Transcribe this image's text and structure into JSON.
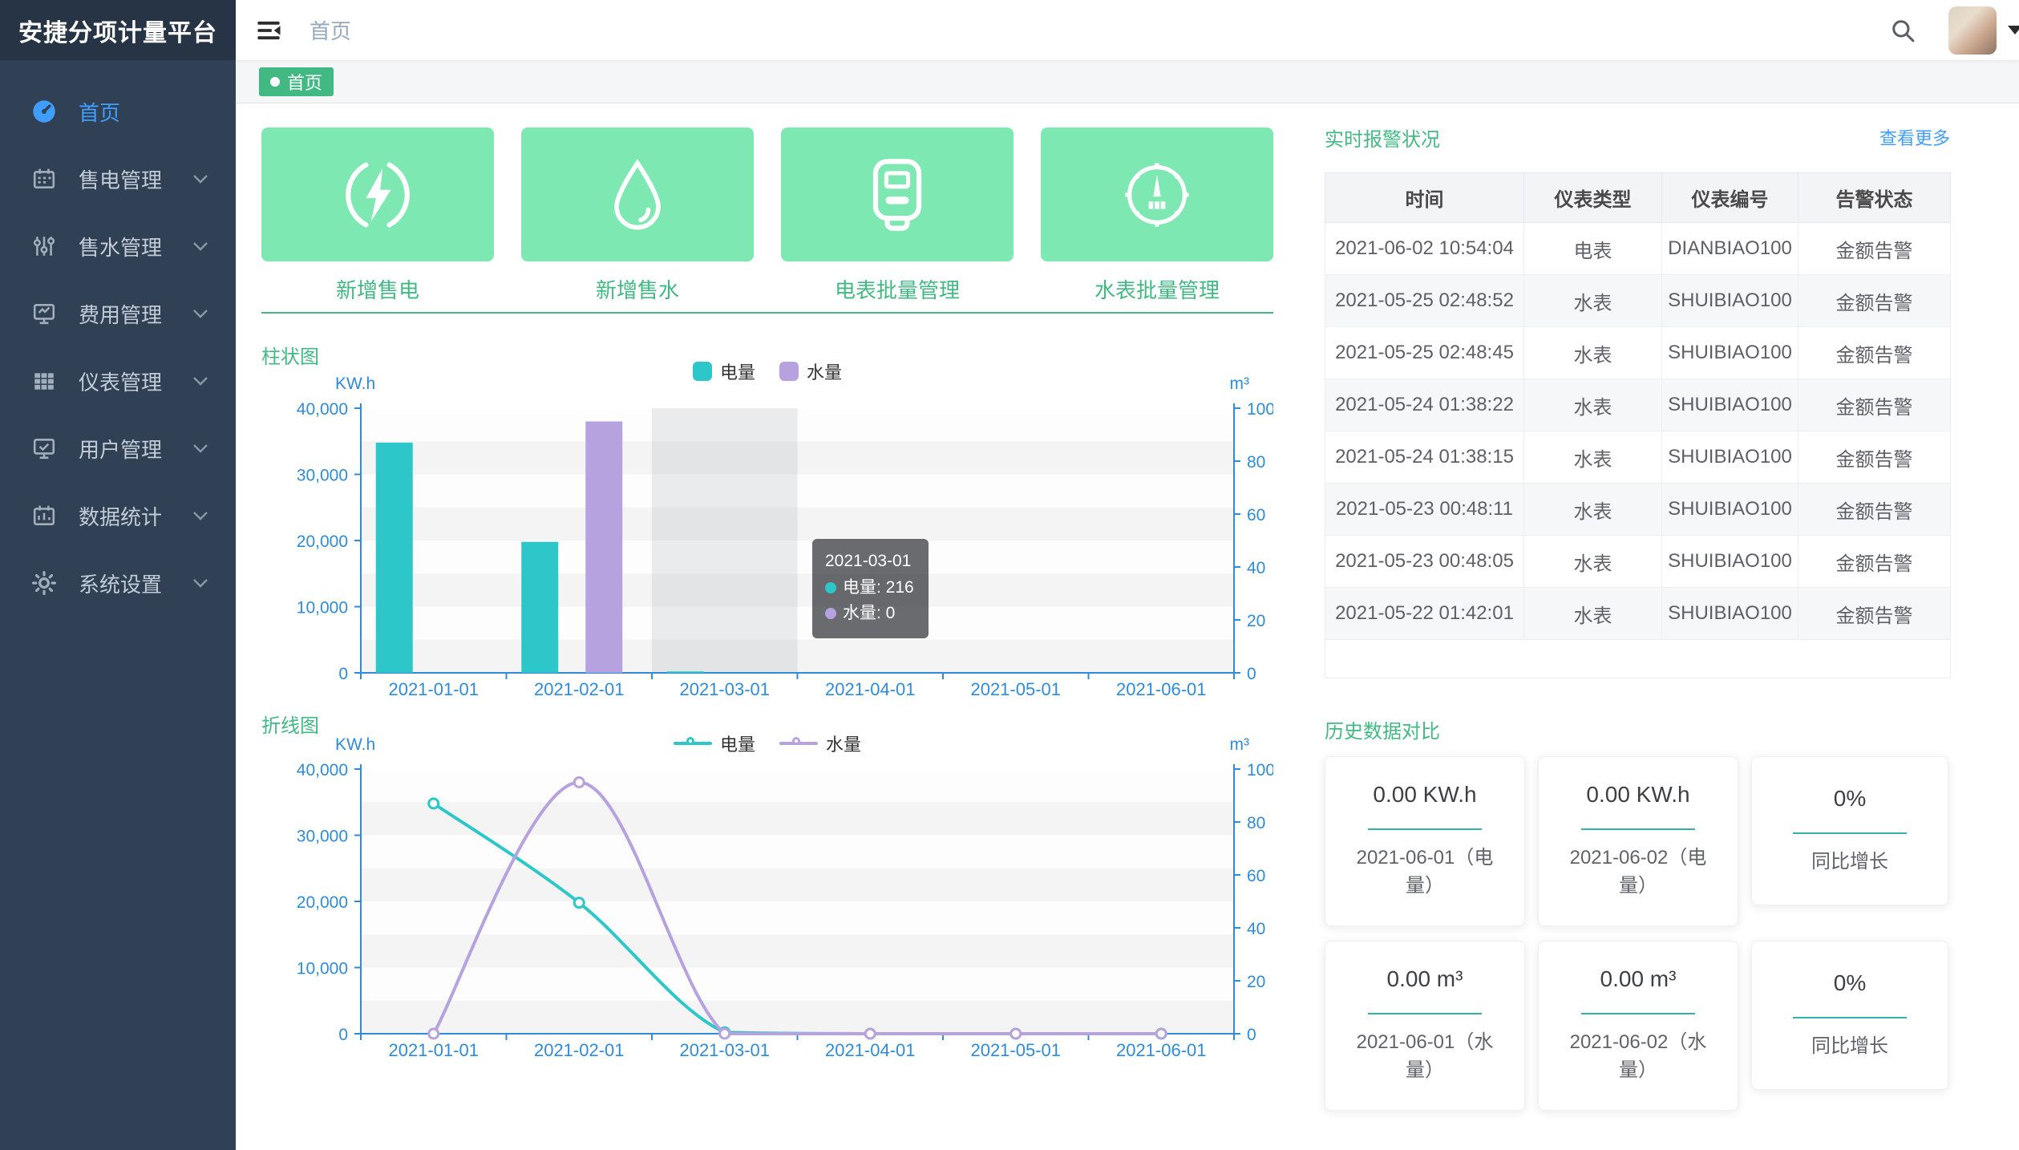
{
  "app": {
    "title": "安捷分项计量平台"
  },
  "header": {
    "breadcrumb": "首页"
  },
  "tagbar": {
    "active_tag": "首页"
  },
  "sidebar": {
    "items": [
      {
        "label": "首页",
        "icon": "dashboard-icon",
        "active": true,
        "has_children": false
      },
      {
        "label": "售电管理",
        "icon": "calendar-icon",
        "active": false,
        "has_children": true
      },
      {
        "label": "售水管理",
        "icon": "sliders-icon",
        "active": false,
        "has_children": true
      },
      {
        "label": "费用管理",
        "icon": "monitor-chart-icon",
        "active": false,
        "has_children": true
      },
      {
        "label": "仪表管理",
        "icon": "grid-icon",
        "active": false,
        "has_children": true
      },
      {
        "label": "用户管理",
        "icon": "monitor-check-icon",
        "active": false,
        "has_children": true
      },
      {
        "label": "数据统计",
        "icon": "calendar-stats-icon",
        "active": false,
        "has_children": true
      },
      {
        "label": "系统设置",
        "icon": "gear-icon",
        "active": false,
        "has_children": true
      }
    ]
  },
  "quick_actions": [
    {
      "label": "新增售电",
      "icon": "lightning-icon"
    },
    {
      "label": "新增售水",
      "icon": "water-drop-icon"
    },
    {
      "label": "电表批量管理",
      "icon": "electric-meter-icon"
    },
    {
      "label": "水表批量管理",
      "icon": "gauge-icon"
    }
  ],
  "colors": {
    "accent_green": "#42b983",
    "card_green": "#7ee8b2",
    "electricity_teal": "#2ec7c9",
    "water_purple": "#b6a2de",
    "axis_blue": "#2f8bd8",
    "link_blue": "#409eff",
    "sidebar_bg": "#304156",
    "active_menu_blue": "#409eff"
  },
  "chart_data": [
    {
      "type": "bar",
      "title": "柱状图",
      "categories": [
        "2021-01-01",
        "2021-02-01",
        "2021-03-01",
        "2021-04-01",
        "2021-05-01",
        "2021-06-01"
      ],
      "series": [
        {
          "name": "电量",
          "axis": "left",
          "color": "#2ec7c9",
          "values": [
            34800,
            19800,
            216,
            0,
            0,
            0
          ]
        },
        {
          "name": "水量",
          "axis": "right",
          "color": "#b6a2de",
          "values": [
            0,
            95,
            0,
            0,
            0,
            0
          ]
        }
      ],
      "y_left": {
        "label": "KW.h",
        "max": 40000,
        "ticks": [
          0,
          10000,
          20000,
          30000,
          40000
        ]
      },
      "y_right": {
        "label": "m³",
        "max": 100,
        "ticks": [
          0,
          20,
          40,
          60,
          80,
          100
        ]
      },
      "axis_color": "#2f8bd8",
      "grid": "split-area-bands",
      "legend_position": "top-center",
      "highlight_index": 2,
      "tooltip": {
        "category": "2021-03-01",
        "entries": [
          {
            "name": "电量",
            "value": "216",
            "color": "#2ec7c9"
          },
          {
            "name": "水量",
            "value": "0",
            "color": "#b6a2de"
          }
        ]
      }
    },
    {
      "type": "line",
      "title": "折线图",
      "categories": [
        "2021-01-01",
        "2021-02-01",
        "2021-03-01",
        "2021-04-01",
        "2021-05-01",
        "2021-06-01"
      ],
      "series": [
        {
          "name": "电量",
          "axis": "left",
          "color": "#2ec7c9",
          "values": [
            34800,
            19800,
            216,
            0,
            0,
            0
          ],
          "smooth": true
        },
        {
          "name": "水量",
          "axis": "right",
          "color": "#b6a2de",
          "values": [
            0,
            95,
            0,
            0,
            0,
            0
          ],
          "smooth": true
        }
      ],
      "y_left": {
        "label": "KW.h",
        "max": 40000,
        "ticks": [
          0,
          10000,
          20000,
          30000,
          40000
        ]
      },
      "y_right": {
        "label": "m³",
        "max": 100,
        "ticks": [
          0,
          20,
          40,
          60,
          80,
          100
        ]
      },
      "axis_color": "#2f8bd8",
      "grid": "split-area-bands",
      "legend_position": "top-center"
    }
  ],
  "alarm_panel": {
    "title": "实时报警状况",
    "more_link": "查看更多",
    "columns": [
      "时间",
      "仪表类型",
      "仪表编号",
      "告警状态"
    ],
    "rows": [
      {
        "time": "2021-06-02 10:54:04",
        "type": "电表",
        "code": "DIANBIAO100",
        "status": "金额告警"
      },
      {
        "time": "2021-05-25 02:48:52",
        "type": "水表",
        "code": "SHUIBIAO100",
        "status": "金额告警"
      },
      {
        "time": "2021-05-25 02:48:45",
        "type": "水表",
        "code": "SHUIBIAO100",
        "status": "金额告警"
      },
      {
        "time": "2021-05-24 01:38:22",
        "type": "水表",
        "code": "SHUIBIAO100",
        "status": "金额告警"
      },
      {
        "time": "2021-05-24 01:38:15",
        "type": "水表",
        "code": "SHUIBIAO100",
        "status": "金额告警"
      },
      {
        "time": "2021-05-23 00:48:11",
        "type": "水表",
        "code": "SHUIBIAO100",
        "status": "金额告警"
      },
      {
        "time": "2021-05-23 00:48:05",
        "type": "水表",
        "code": "SHUIBIAO100",
        "status": "金额告警"
      },
      {
        "time": "2021-05-22 01:42:01",
        "type": "水表",
        "code": "SHUIBIAO100",
        "status": "金额告警"
      }
    ]
  },
  "history_panel": {
    "title": "历史数据对比",
    "cards": [
      {
        "value": "0.00 KW.h",
        "label": "2021-06-01（电量）"
      },
      {
        "value": "0.00 KW.h",
        "label": "2021-06-02（电量）"
      },
      {
        "value": "0%",
        "label": "同比增长"
      },
      {
        "value": "0.00 m³",
        "label": "2021-06-01（水量）"
      },
      {
        "value": "0.00 m³",
        "label": "2021-06-02（水量）"
      },
      {
        "value": "0%",
        "label": "同比增长"
      }
    ]
  }
}
